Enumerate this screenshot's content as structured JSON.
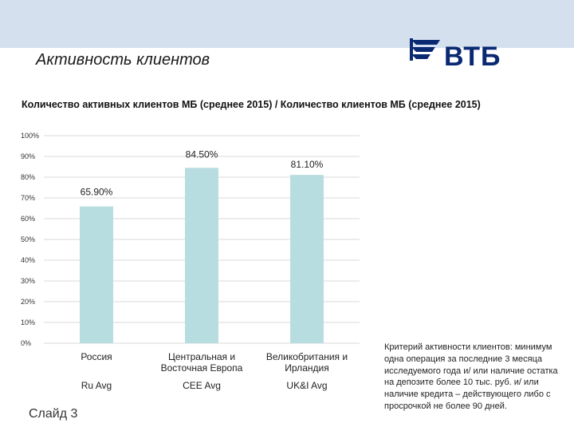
{
  "header": {
    "title": "Активность клиентов",
    "logo_text": "ВТБ"
  },
  "colors": {
    "bar": "#b8dde0",
    "band": "#d4e0ee",
    "logo": "#0a2973"
  },
  "chart_data": {
    "type": "bar",
    "title": "Количество активных клиентов МБ (среднее 2015) / Количество клиентов МБ (среднее 2015)",
    "categories": [
      "Россия",
      "Центральная и Восточная Европа",
      "Великобритания и Ирландия"
    ],
    "category_codes": [
      "Ru Avg",
      "CEE Avg",
      "UK&I Avg"
    ],
    "values": [
      65.9,
      84.5,
      81.1
    ],
    "value_labels": [
      "65.90%",
      "84.50%",
      "81.10%"
    ],
    "ylim": [
      0,
      100
    ],
    "yticks": [
      "0%",
      "10%",
      "20%",
      "30%",
      "40%",
      "50%",
      "60%",
      "70%",
      "80%",
      "90%",
      "100%"
    ],
    "grid": true,
    "xlabel": "",
    "ylabel": ""
  },
  "footer": {
    "slide_label": "Слайд 3",
    "criteria_text": "Критерий активности клиентов: минимум одна операция за последние 3 месяца исследуемого года и/ или наличие остатка на депозите более 10 тыс. руб. и/ или наличие кредита – действующего либо с просрочкой не более 90 дней."
  }
}
